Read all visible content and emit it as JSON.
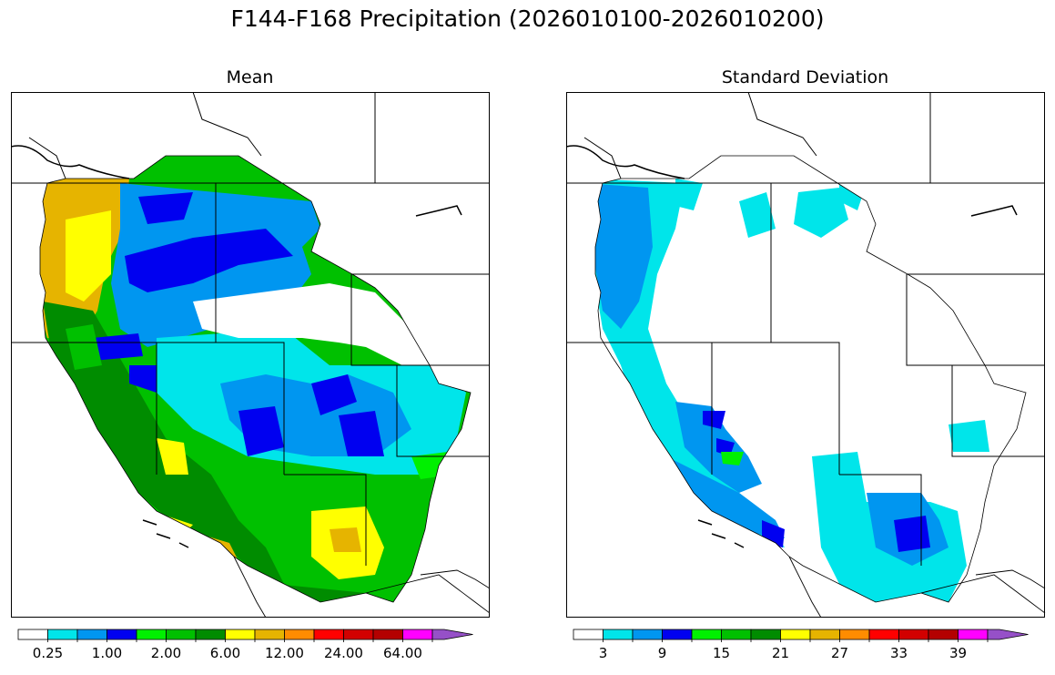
{
  "title": "F144-F168 Precipitation (2026010100-2026010200)",
  "panels": [
    {
      "subtitle": "Mean",
      "colorbar": {
        "colors": [
          "#ffffff",
          "#00e5ea",
          "#0096f0",
          "#0000f0",
          "#00f000",
          "#00c000",
          "#008c00",
          "#ffff00",
          "#e6b400",
          "#ff8c00",
          "#ff0000",
          "#d20000",
          "#b40000",
          "#ff00ff",
          "#9650c8"
        ],
        "tick_labels": [
          "0.25",
          "1.00",
          "2.00",
          "6.00",
          "12.00",
          "24.00",
          "64.00"
        ]
      }
    },
    {
      "subtitle": "Standard Deviation",
      "colorbar": {
        "colors": [
          "#ffffff",
          "#00e5ea",
          "#0096f0",
          "#0000f0",
          "#00f000",
          "#00c000",
          "#008c00",
          "#ffff00",
          "#e6b400",
          "#ff8c00",
          "#ff0000",
          "#d20000",
          "#b40000",
          "#ff00ff",
          "#9650c8"
        ],
        "tick_labels": [
          "3",
          "9",
          "15",
          "21",
          "27",
          "33",
          "39"
        ]
      }
    }
  ]
}
